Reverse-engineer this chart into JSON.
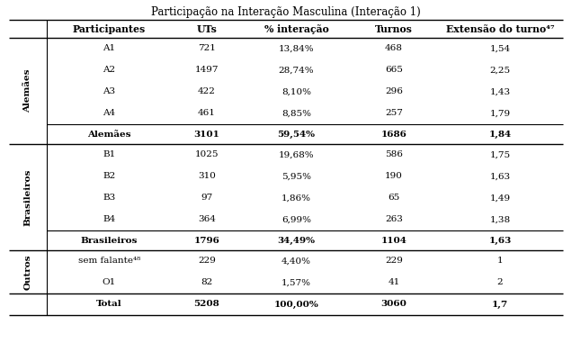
{
  "title": "Participação na Interação Masculina (Interação 1)",
  "col_headers": [
    "Participantes",
    "UTs",
    "% interação",
    "Turnos",
    "Extensão do turno⁴⁷"
  ],
  "groups": [
    {
      "label": "Alemães",
      "rows": [
        [
          "A1",
          "721",
          "13,84%",
          "468",
          "1,54"
        ],
        [
          "A2",
          "1497",
          "28,74%",
          "665",
          "2,25"
        ],
        [
          "A3",
          "422",
          "8,10%",
          "296",
          "1,43"
        ],
        [
          "A4",
          "461",
          "8,85%",
          "257",
          "1,79"
        ]
      ],
      "subtotal": [
        "Alemães",
        "3101",
        "59,54%",
        "1686",
        "1,84"
      ]
    },
    {
      "label": "Brasileiros",
      "rows": [
        [
          "B1",
          "1025",
          "19,68%",
          "586",
          "1,75"
        ],
        [
          "B2",
          "310",
          "5,95%",
          "190",
          "1,63"
        ],
        [
          "B3",
          "97",
          "1,86%",
          "65",
          "1,49"
        ],
        [
          "B4",
          "364",
          "6,99%",
          "263",
          "1,38"
        ]
      ],
      "subtotal": [
        "Brasileiros",
        "1796",
        "34,49%",
        "1104",
        "1,63"
      ]
    },
    {
      "label": "Outros",
      "rows": [
        [
          "sem falante⁴⁸",
          "229",
          "4,40%",
          "229",
          "1"
        ],
        [
          "O1",
          "82",
          "1,57%",
          "41",
          "2"
        ]
      ],
      "subtotal": null
    }
  ],
  "total": [
    "Total",
    "5208",
    "100,00%",
    "3060",
    "1,7"
  ],
  "bg": "#ffffff",
  "fg": "#000000",
  "fs": 7.5,
  "title_fs": 8.5,
  "header_fs": 7.8
}
